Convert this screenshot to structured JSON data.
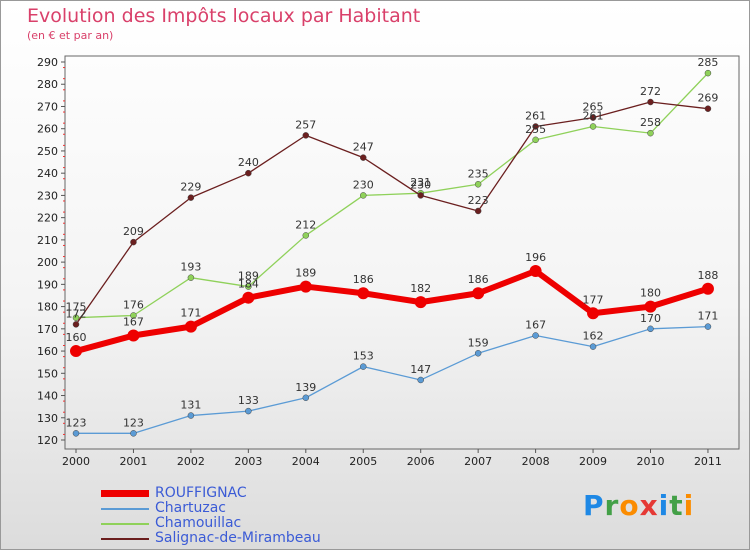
{
  "title": "Evolution des Impôts locaux par Habitant",
  "subtitle": "(en € et par an)",
  "logo": "Proxiti",
  "chart_data": {
    "type": "line",
    "title": "Evolution des Impôts locaux par Habitant",
    "subtitle": "(en € et par an)",
    "x": [
      2000,
      2001,
      2002,
      2003,
      2004,
      2005,
      2006,
      2007,
      2008,
      2009,
      2010,
      2011
    ],
    "xticks": [
      "2000",
      "2001",
      "2002",
      "2003",
      "2004",
      "2005",
      "2006",
      "2007",
      "2008",
      "2009",
      "2010",
      "2011"
    ],
    "ylim": [
      120,
      290
    ],
    "yticks": [
      "120",
      "130",
      "140",
      "150",
      "160",
      "170",
      "180",
      "190",
      "200",
      "210",
      "220",
      "230",
      "240",
      "250",
      "260",
      "270",
      "280",
      "290"
    ],
    "grid": false,
    "legend_position": "bottom-left",
    "series": [
      {
        "name": "ROUFFIGNAC",
        "color": "#ee0000",
        "values": [
          160,
          167,
          171,
          184,
          189,
          186,
          182,
          186,
          196,
          177,
          180,
          188
        ]
      },
      {
        "name": "Chartuzac",
        "color": "#5b9bd5",
        "values": [
          123,
          123,
          131,
          133,
          139,
          153,
          147,
          159,
          167,
          162,
          170,
          171
        ]
      },
      {
        "name": "Chamouillac",
        "color": "#8fd15a",
        "values": [
          175,
          176,
          193,
          189,
          212,
          230,
          231,
          235,
          255,
          261,
          258,
          285
        ]
      },
      {
        "name": "Salignac-de-Mirambeau",
        "color": "#6b1f1f",
        "values": [
          172,
          209,
          229,
          240,
          257,
          247,
          230,
          223,
          261,
          265,
          272,
          269
        ]
      }
    ]
  }
}
